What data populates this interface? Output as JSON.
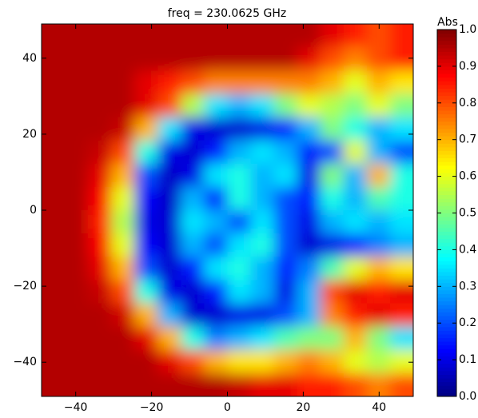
{
  "chart_data": {
    "type": "heatmap",
    "title": "freq = 230.0625 GHz",
    "colorbar_label": "Abs",
    "colormap": "jet",
    "xlim": [
      -49,
      49
    ],
    "ylim": [
      -49,
      49
    ],
    "xticks": [
      {
        "value": -40,
        "label": "−40"
      },
      {
        "value": -20,
        "label": "−20"
      },
      0,
      20,
      40
    ],
    "yticks": [
      {
        "value": -40,
        "label": "−40"
      },
      {
        "value": -20,
        "label": "−20"
      },
      0,
      20,
      40
    ],
    "clim": [
      0,
      1
    ],
    "cticks": [
      {
        "value": 0,
        "label": "0.0"
      },
      0.1,
      0.2,
      0.3,
      0.4,
      0.5,
      0.6,
      0.7,
      0.8,
      0.9,
      {
        "value": 1,
        "label": "1.0"
      }
    ],
    "values": [
      [
        0.95,
        0.95,
        0.95,
        0.95,
        0.95,
        0.95,
        0.95,
        0.95,
        0.95,
        0.95,
        0.95,
        0.95,
        0.9,
        0.85,
        0.8,
        0.85
      ],
      [
        0.95,
        0.95,
        0.95,
        0.95,
        0.95,
        0.95,
        0.95,
        0.95,
        0.95,
        0.95,
        0.95,
        0.9,
        0.8,
        0.75,
        0.8,
        0.85
      ],
      [
        0.95,
        0.95,
        0.95,
        0.95,
        0.9,
        0.85,
        0.8,
        0.75,
        0.75,
        0.75,
        0.75,
        0.75,
        0.7,
        0.6,
        0.7,
        0.65
      ],
      [
        0.95,
        0.95,
        0.95,
        0.95,
        0.9,
        0.8,
        0.55,
        0.35,
        0.3,
        0.35,
        0.5,
        0.6,
        0.55,
        0.5,
        0.6,
        0.5
      ],
      [
        0.95,
        0.95,
        0.95,
        0.93,
        0.7,
        0.35,
        0.1,
        0.08,
        0.08,
        0.1,
        0.15,
        0.3,
        0.5,
        0.4,
        0.3,
        0.35
      ],
      [
        0.95,
        0.95,
        0.93,
        0.8,
        0.4,
        0.1,
        0.08,
        0.15,
        0.3,
        0.35,
        0.3,
        0.15,
        0.2,
        0.6,
        0.3,
        0.2
      ],
      [
        0.95,
        0.95,
        0.9,
        0.7,
        0.2,
        0.07,
        0.1,
        0.35,
        0.4,
        0.3,
        0.35,
        0.1,
        0.5,
        0.3,
        0.7,
        0.4
      ],
      [
        0.95,
        0.95,
        0.88,
        0.6,
        0.12,
        0.07,
        0.3,
        0.15,
        0.4,
        0.3,
        0.2,
        0.15,
        0.4,
        0.3,
        0.45,
        0.4
      ],
      [
        0.95,
        0.95,
        0.85,
        0.55,
        0.1,
        0.08,
        0.35,
        0.3,
        0.2,
        0.35,
        0.2,
        0.1,
        0.3,
        0.35,
        0.3,
        0.35
      ],
      [
        0.95,
        0.95,
        0.88,
        0.6,
        0.12,
        0.08,
        0.3,
        0.2,
        0.35,
        0.4,
        0.2,
        0.08,
        0.1,
        0.15,
        0.25,
        0.3
      ],
      [
        0.95,
        0.95,
        0.9,
        0.7,
        0.2,
        0.08,
        0.15,
        0.35,
        0.4,
        0.3,
        0.15,
        0.25,
        0.45,
        0.6,
        0.7,
        0.65
      ],
      [
        0.95,
        0.95,
        0.93,
        0.8,
        0.4,
        0.1,
        0.08,
        0.15,
        0.35,
        0.3,
        0.1,
        0.3,
        0.8,
        0.9,
        0.85,
        0.9
      ],
      [
        0.95,
        0.95,
        0.95,
        0.92,
        0.7,
        0.3,
        0.08,
        0.08,
        0.1,
        0.1,
        0.2,
        0.3,
        0.75,
        0.85,
        0.9,
        0.85
      ],
      [
        0.95,
        0.95,
        0.95,
        0.95,
        0.9,
        0.7,
        0.4,
        0.25,
        0.3,
        0.35,
        0.45,
        0.5,
        0.5,
        0.7,
        0.5,
        0.35
      ],
      [
        0.95,
        0.95,
        0.95,
        0.95,
        0.95,
        0.9,
        0.8,
        0.7,
        0.65,
        0.65,
        0.7,
        0.75,
        0.7,
        0.6,
        0.55,
        0.6
      ],
      [
        0.95,
        0.95,
        0.95,
        0.95,
        0.95,
        0.95,
        0.95,
        0.95,
        0.93,
        0.9,
        0.9,
        0.85,
        0.85,
        0.8,
        0.75,
        0.8
      ]
    ]
  }
}
